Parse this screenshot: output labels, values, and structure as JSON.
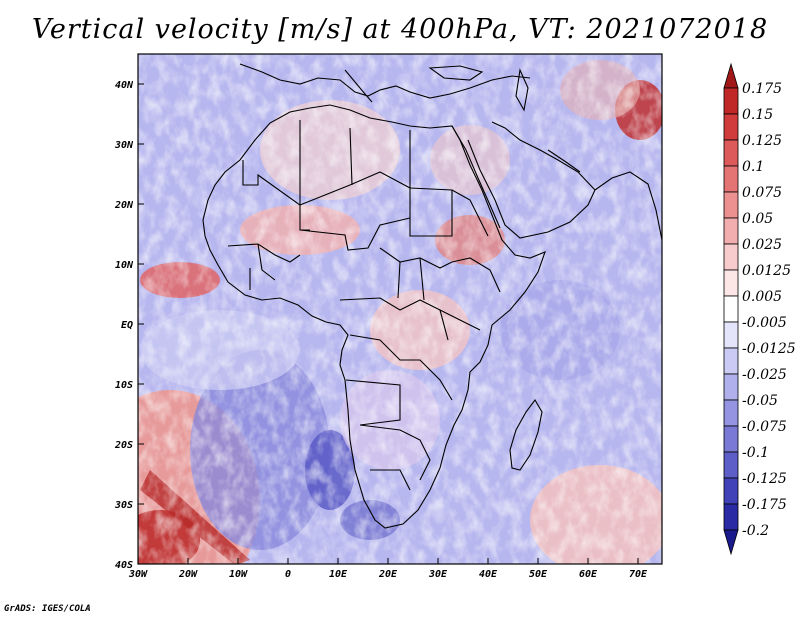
{
  "title": "Vertical velocity [m/s] at 400hPa, VT: 2021072018",
  "footer": "GrADS: IGES/COLA",
  "map": {
    "lon_range": [
      -30,
      75
    ],
    "lat_range": [
      -40,
      45
    ],
    "lon_ticks": [
      "30W",
      "20W",
      "10W",
      "0",
      "10E",
      "20E",
      "30E",
      "40E",
      "50E",
      "60E",
      "70E"
    ],
    "lat_ticks": [
      "40S",
      "30S",
      "20S",
      "10S",
      "EQ",
      "10N",
      "20N",
      "30N",
      "40N"
    ]
  },
  "colorbar": {
    "levels": [
      "0.175",
      "0.15",
      "0.125",
      "0.1",
      "0.075",
      "0.05",
      "0.025",
      "0.0125",
      "0.005",
      "-0.005",
      "-0.0125",
      "-0.025",
      "-0.05",
      "-0.075",
      "-0.1",
      "-0.125",
      "-0.175",
      "-0.2"
    ],
    "colors": [
      "#a01818",
      "#c02828",
      "#d03c3c",
      "#dc5a5a",
      "#e47474",
      "#ec9090",
      "#f2aeae",
      "#f8cccc",
      "#fde6e6",
      "#ffffff",
      "#e4e4fb",
      "#cacaf4",
      "#b0b0ec",
      "#9494e2",
      "#7a7ad6",
      "#5e5ec8",
      "#4242b8",
      "#2a2aa4",
      "#1a1a8c"
    ]
  }
}
